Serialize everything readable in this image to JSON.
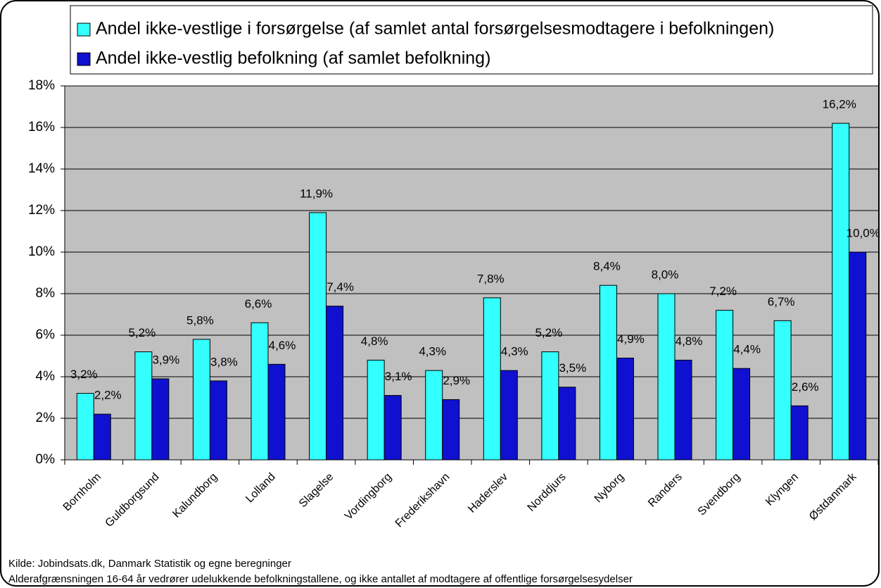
{
  "chart_data": {
    "type": "bar",
    "categories": [
      "Bornholm",
      "Guldborgsund",
      "Kalundborg",
      "Lolland",
      "Slagelse",
      "Vordingborg",
      "Frederikshavn",
      "Haderslev",
      "Norddjurs",
      "Nyborg",
      "Randers",
      "Svendborg",
      "Klyngen",
      "Østdanmark"
    ],
    "series": [
      {
        "name": "Andel ikke-vestlige i forsørgelse (af samlet antal forsørgelsesmodtagere i befolkningen)",
        "color": "#33ffff",
        "values": [
          3.2,
          5.2,
          5.8,
          6.6,
          11.9,
          4.8,
          4.3,
          7.8,
          5.2,
          8.4,
          8.0,
          7.2,
          6.7,
          16.2
        ],
        "value_labels": [
          "3,2%",
          "5,2%",
          "5,8%",
          "6,6%",
          "11,9%",
          "4,8%",
          "4,3%",
          "7,8%",
          "5,2%",
          "8,4%",
          "8,0%",
          "7,2%",
          "6,7%",
          "16,2%"
        ]
      },
      {
        "name": "Andel ikke-vestlig befolkning (af samlet befolkning)",
        "color": "#1010d0",
        "values": [
          2.2,
          3.9,
          3.8,
          4.6,
          7.4,
          3.1,
          2.9,
          4.3,
          3.5,
          4.9,
          4.8,
          4.4,
          2.6,
          10.0
        ],
        "value_labels": [
          "2,2%",
          "3,9%",
          "3,8%",
          "4,6%",
          "7,4%",
          "3,1%",
          "2,9%",
          "4,3%",
          "3,5%",
          "4,9%",
          "4,8%",
          "4,4%",
          "2,6%",
          "10,0%"
        ]
      }
    ],
    "ylim": [
      0,
      18
    ],
    "yticks": [
      {
        "value": 0,
        "label": "0%"
      },
      {
        "value": 2,
        "label": "2%"
      },
      {
        "value": 4,
        "label": "4%"
      },
      {
        "value": 6,
        "label": "6%"
      },
      {
        "value": 8,
        "label": "8%"
      },
      {
        "value": 10,
        "label": "10%"
      },
      {
        "value": 12,
        "label": "12%"
      },
      {
        "value": 14,
        "label": "14%"
      },
      {
        "value": 16,
        "label": "16%"
      },
      {
        "value": 18,
        "label": "18%"
      }
    ],
    "grid": true,
    "legend": "top",
    "source": "Kilde: Jobindsats.dk, Danmark Statistik og egne beregninger",
    "note": "Alderafgrænsningen 16-64 år vedrører udelukkende befolkningstallene, og ikke antallet af modtagere af offentlige forsørgelsesydelser"
  }
}
